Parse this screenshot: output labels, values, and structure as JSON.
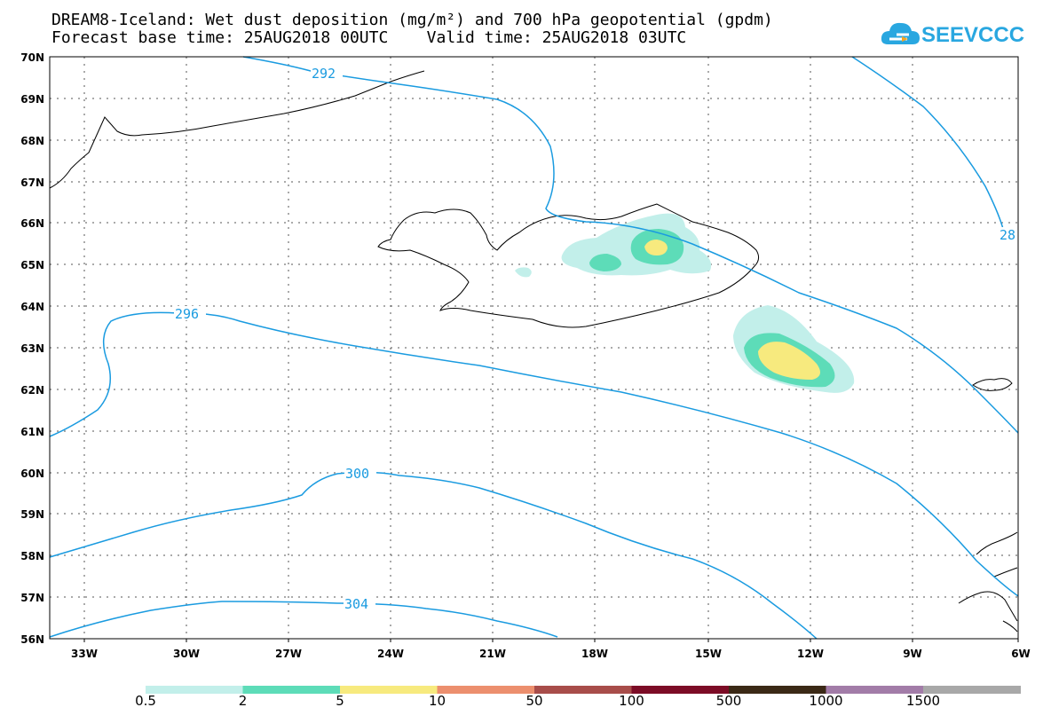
{
  "title_line1": "DREAM8-Iceland: Wet dust deposition (mg/m²) and 700 hPa geopotential (gpdm)",
  "title_line2": "Forecast base time: 25AUG2018 00UTC    Valid time: 25AUG2018 03UTC",
  "logo_text": "SEEVCCC",
  "axes": {
    "lon_ticks": [
      "33W",
      "30W",
      "27W",
      "24W",
      "21W",
      "18W",
      "15W",
      "12W",
      "9W",
      "6W"
    ],
    "lat_ticks": [
      "70N",
      "69N",
      "68N",
      "67N",
      "66N",
      "65N",
      "64N",
      "63N",
      "62N",
      "61N",
      "60N",
      "59N",
      "58N",
      "57N",
      "56N"
    ]
  },
  "contours": {
    "color": "#1a9be0",
    "labels": [
      "292",
      "296",
      "300",
      "304",
      "28"
    ]
  },
  "colorbar": {
    "colors": [
      "#c2efea",
      "#5ddcb8",
      "#f7ea7e",
      "#ec8f6e",
      "#a84d4a",
      "#7c0c26",
      "#3b2916",
      "#a27ca8",
      "#a8a8a8"
    ],
    "labels": [
      "0.5",
      "2",
      "5",
      "10",
      "50",
      "100",
      "500",
      "1000",
      "1500"
    ]
  }
}
